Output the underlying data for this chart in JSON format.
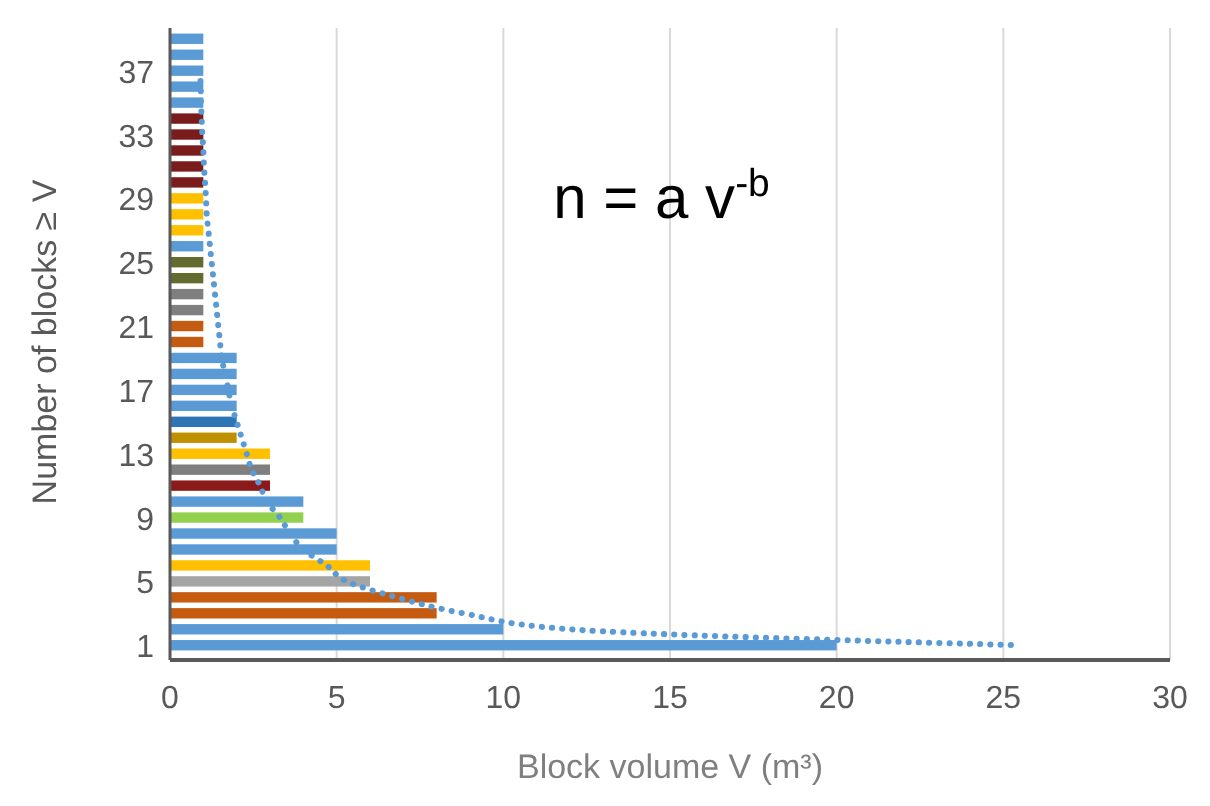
{
  "chart_data": {
    "type": "bar",
    "orientation": "horizontal",
    "xlabel": "Block volume V (m³)",
    "ylabel": "Number of blocks ≥ V",
    "annotations": [
      "n = a v$^{-b}$"
    ],
    "categories": [
      null,
      null,
      "37",
      null,
      null,
      null,
      "33",
      null,
      null,
      null,
      "29",
      null,
      null,
      null,
      "25",
      null,
      null,
      null,
      "21",
      null,
      null,
      null,
      "17",
      null,
      null,
      null,
      "13",
      null,
      null,
      null,
      "9",
      null,
      null,
      null,
      "5",
      null,
      null,
      null,
      "1"
    ],
    "values": [
      1,
      1,
      1,
      1,
      1,
      1,
      1,
      1,
      1,
      1,
      1,
      1,
      1,
      1,
      1,
      1,
      1,
      1,
      1,
      1,
      2,
      2,
      2,
      2,
      2,
      2,
      3,
      3,
      3,
      4,
      4,
      5,
      5,
      6,
      6,
      8,
      8,
      10,
      20
    ],
    "colors": [
      "#5b9bd5",
      "#5b9bd5",
      "#5b9bd5",
      "#5b9bd5",
      "#5b9bd5",
      "#7b1c1c",
      "#7b1c1c",
      "#7b1c1c",
      "#7b1c1c",
      "#7b1c1c",
      "#ffc000",
      "#ffc000",
      "#ffc000",
      "#5b9bd5",
      "#636b2f",
      "#636b2f",
      "#7f7f7f",
      "#7f7f7f",
      "#c55a11",
      "#c55a11",
      "#5b9bd5",
      "#5b9bd5",
      "#5b9bd5",
      "#5b9bd5",
      "#2e75b6",
      "#bf9000",
      "#ffc000",
      "#7f7f7f",
      "#8b1a1a",
      "#5b9bd5",
      "#92d050",
      "#5b9bd5",
      "#5b9bd5",
      "#ffc000",
      "#a5a5a5",
      "#c55a11",
      "#c55a11",
      "#5b9bd5",
      "#5b9bd5"
    ],
    "series": [
      {
        "type": "line",
        "color": "#5b9bd5",
        "line_style": "dotted",
        "values": [
          null,
          null,
          0.9,
          0.92,
          0.93,
          0.95,
          0.97,
          1.0,
          1.02,
          1.05,
          1.08,
          1.1,
          1.15,
          1.2,
          1.25,
          1.3,
          1.35,
          1.4,
          1.45,
          1.5,
          1.55,
          1.65,
          1.75,
          1.85,
          2.0,
          2.15,
          2.3,
          2.45,
          2.7,
          2.9,
          3.3,
          3.6,
          4.0,
          4.7,
          5.3,
          6.8,
          8.8,
          12,
          25.5
        ]
      }
    ],
    "xlim": [
      0,
      30
    ],
    "xticks": [
      0,
      5,
      10,
      15,
      20,
      25,
      30
    ],
    "grid": "x"
  }
}
